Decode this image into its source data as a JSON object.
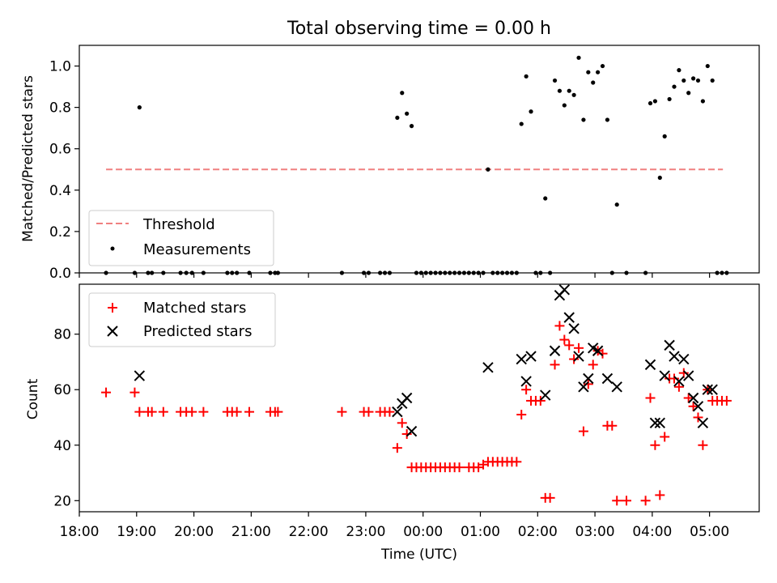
{
  "chart_data": [
    {
      "type": "scatter",
      "title": "Total observing time = 0.00 h",
      "ylabel": "Matched/Predicted stars",
      "xlabel": "",
      "xlim": [
        "18:00",
        "05:52"
      ],
      "ylim": [
        0,
        1.1
      ],
      "yticks": [
        "0.0",
        "0.2",
        "0.4",
        "0.6",
        "0.8",
        "1.0"
      ],
      "legend_position": "lower-left",
      "threshold": {
        "name": "Threshold",
        "value": 0.5,
        "x_range": [
          "18:28",
          "05:14"
        ],
        "color": "#f08080",
        "style": "dashed"
      },
      "series": [
        {
          "name": "Measurements",
          "color": "#000000",
          "marker": "dot",
          "points": [
            [
              "18:28",
              0
            ],
            [
              "18:58",
              0
            ],
            [
              "19:03",
              0.8
            ],
            [
              "19:12",
              0
            ],
            [
              "19:16",
              0
            ],
            [
              "19:28",
              0
            ],
            [
              "19:46",
              0
            ],
            [
              "19:52",
              0
            ],
            [
              "19:58",
              0
            ],
            [
              "20:10",
              0
            ],
            [
              "20:35",
              0
            ],
            [
              "20:40",
              0
            ],
            [
              "20:45",
              0
            ],
            [
              "20:58",
              0
            ],
            [
              "21:20",
              0
            ],
            [
              "21:25",
              0
            ],
            [
              "21:28",
              0
            ],
            [
              "22:35",
              0
            ],
            [
              "22:58",
              0
            ],
            [
              "23:03",
              0
            ],
            [
              "23:15",
              0
            ],
            [
              "23:20",
              0
            ],
            [
              "23:25",
              0
            ],
            [
              "23:33",
              0.75
            ],
            [
              "23:38",
              0.87
            ],
            [
              "23:43",
              0.77
            ],
            [
              "23:48",
              0.71
            ],
            [
              "23:53",
              0
            ],
            [
              "23:58",
              0
            ],
            [
              "00:03",
              0
            ],
            [
              "00:08",
              0
            ],
            [
              "00:13",
              0
            ],
            [
              "00:18",
              0
            ],
            [
              "00:23",
              0
            ],
            [
              "00:28",
              0
            ],
            [
              "00:33",
              0
            ],
            [
              "00:38",
              0
            ],
            [
              "00:43",
              0
            ],
            [
              "00:48",
              0
            ],
            [
              "00:53",
              0
            ],
            [
              "00:58",
              0
            ],
            [
              "01:03",
              0
            ],
            [
              "01:08",
              0.5
            ],
            [
              "01:13",
              0
            ],
            [
              "01:18",
              0
            ],
            [
              "01:23",
              0
            ],
            [
              "01:28",
              0
            ],
            [
              "01:33",
              0
            ],
            [
              "01:38",
              0
            ],
            [
              "01:43",
              0.72
            ],
            [
              "01:48",
              0.95
            ],
            [
              "01:53",
              0.78
            ],
            [
              "01:58",
              0
            ],
            [
              "02:03",
              0
            ],
            [
              "02:08",
              0.36
            ],
            [
              "02:13",
              0
            ],
            [
              "02:18",
              0.93
            ],
            [
              "02:23",
              0.88
            ],
            [
              "02:28",
              0.81
            ],
            [
              "02:33",
              0.88
            ],
            [
              "02:38",
              0.86
            ],
            [
              "02:43",
              1.04
            ],
            [
              "02:48",
              0.74
            ],
            [
              "02:53",
              0.97
            ],
            [
              "02:58",
              0.92
            ],
            [
              "03:03",
              0.97
            ],
            [
              "03:08",
              1.0
            ],
            [
              "03:13",
              0.74
            ],
            [
              "03:18",
              0
            ],
            [
              "03:23",
              0.33
            ],
            [
              "03:33",
              0
            ],
            [
              "03:53",
              0
            ],
            [
              "03:58",
              0.82
            ],
            [
              "04:03",
              0.83
            ],
            [
              "04:08",
              0.46
            ],
            [
              "04:13",
              0.66
            ],
            [
              "04:18",
              0.84
            ],
            [
              "04:23",
              0.9
            ],
            [
              "04:28",
              0.98
            ],
            [
              "04:33",
              0.93
            ],
            [
              "04:38",
              0.87
            ],
            [
              "04:43",
              0.94
            ],
            [
              "04:48",
              0.93
            ],
            [
              "04:53",
              0.83
            ],
            [
              "04:58",
              1.0
            ],
            [
              "05:03",
              0.93
            ],
            [
              "05:08",
              0
            ],
            [
              "05:13",
              0
            ],
            [
              "05:18",
              0
            ]
          ]
        }
      ]
    },
    {
      "type": "scatter",
      "title": "",
      "ylabel": "Count",
      "xlabel": "Time (UTC)",
      "xlim": [
        "18:00",
        "05:52"
      ],
      "ylim": [
        16,
        98
      ],
      "yticks": [
        "20",
        "40",
        "60",
        "80"
      ],
      "xticks": [
        "18:00",
        "19:00",
        "20:00",
        "21:00",
        "22:00",
        "23:00",
        "00:00",
        "01:00",
        "02:00",
        "03:00",
        "04:00",
        "05:00"
      ],
      "legend_position": "upper-left",
      "series": [
        {
          "name": "Matched stars",
          "color": "#ff0000",
          "marker": "plus",
          "points": [
            [
              "18:28",
              59
            ],
            [
              "18:58",
              59
            ],
            [
              "19:03",
              52
            ],
            [
              "19:12",
              52
            ],
            [
              "19:16",
              52
            ],
            [
              "19:28",
              52
            ],
            [
              "19:46",
              52
            ],
            [
              "19:52",
              52
            ],
            [
              "19:58",
              52
            ],
            [
              "20:10",
              52
            ],
            [
              "20:35",
              52
            ],
            [
              "20:40",
              52
            ],
            [
              "20:45",
              52
            ],
            [
              "20:58",
              52
            ],
            [
              "21:20",
              52
            ],
            [
              "21:25",
              52
            ],
            [
              "21:28",
              52
            ],
            [
              "22:35",
              52
            ],
            [
              "22:58",
              52
            ],
            [
              "23:03",
              52
            ],
            [
              "23:15",
              52
            ],
            [
              "23:20",
              52
            ],
            [
              "23:25",
              52
            ],
            [
              "23:33",
              39
            ],
            [
              "23:38",
              48
            ],
            [
              "23:43",
              44
            ],
            [
              "23:48",
              32
            ],
            [
              "23:53",
              32
            ],
            [
              "23:58",
              32
            ],
            [
              "00:03",
              32
            ],
            [
              "00:08",
              32
            ],
            [
              "00:13",
              32
            ],
            [
              "00:18",
              32
            ],
            [
              "00:23",
              32
            ],
            [
              "00:28",
              32
            ],
            [
              "00:33",
              32
            ],
            [
              "00:38",
              32
            ],
            [
              "00:48",
              32
            ],
            [
              "00:53",
              32
            ],
            [
              "00:58",
              32
            ],
            [
              "01:03",
              33
            ],
            [
              "01:08",
              34
            ],
            [
              "01:13",
              34
            ],
            [
              "01:18",
              34
            ],
            [
              "01:23",
              34
            ],
            [
              "01:28",
              34
            ],
            [
              "01:33",
              34
            ],
            [
              "01:38",
              34
            ],
            [
              "01:43",
              51
            ],
            [
              "01:48",
              60
            ],
            [
              "01:53",
              56
            ],
            [
              "01:58",
              56
            ],
            [
              "02:03",
              56
            ],
            [
              "02:08",
              21
            ],
            [
              "02:13",
              21
            ],
            [
              "02:18",
              69
            ],
            [
              "02:23",
              83
            ],
            [
              "02:28",
              78
            ],
            [
              "02:33",
              76
            ],
            [
              "02:38",
              71
            ],
            [
              "02:43",
              75
            ],
            [
              "02:48",
              45
            ],
            [
              "02:53",
              62
            ],
            [
              "02:58",
              69
            ],
            [
              "03:03",
              74
            ],
            [
              "03:08",
              73
            ],
            [
              "03:13",
              47
            ],
            [
              "03:18",
              47
            ],
            [
              "03:23",
              20
            ],
            [
              "03:33",
              20
            ],
            [
              "03:53",
              20
            ],
            [
              "03:58",
              57
            ],
            [
              "04:03",
              40
            ],
            [
              "04:08",
              22
            ],
            [
              "04:13",
              43
            ],
            [
              "04:18",
              64
            ],
            [
              "04:23",
              64
            ],
            [
              "04:28",
              61
            ],
            [
              "04:33",
              66
            ],
            [
              "04:38",
              57
            ],
            [
              "04:43",
              54
            ],
            [
              "04:48",
              50
            ],
            [
              "04:53",
              40
            ],
            [
              "04:58",
              60
            ],
            [
              "05:03",
              56
            ],
            [
              "05:08",
              56
            ],
            [
              "05:13",
              56
            ],
            [
              "05:18",
              56
            ]
          ]
        },
        {
          "name": "Predicted stars",
          "color": "#000000",
          "marker": "x",
          "points": [
            [
              "19:03",
              65
            ],
            [
              "23:33",
              52
            ],
            [
              "23:38",
              55
            ],
            [
              "23:43",
              57
            ],
            [
              "23:48",
              45
            ],
            [
              "01:08",
              68
            ],
            [
              "01:43",
              71
            ],
            [
              "01:48",
              63
            ],
            [
              "01:53",
              72
            ],
            [
              "02:08",
              58
            ],
            [
              "02:18",
              74
            ],
            [
              "02:23",
              94
            ],
            [
              "02:28",
              96
            ],
            [
              "02:33",
              86
            ],
            [
              "02:38",
              82
            ],
            [
              "02:43",
              72
            ],
            [
              "02:48",
              61
            ],
            [
              "02:53",
              64
            ],
            [
              "02:58",
              75
            ],
            [
              "03:03",
              74
            ],
            [
              "03:13",
              64
            ],
            [
              "03:23",
              61
            ],
            [
              "03:58",
              69
            ],
            [
              "04:03",
              48
            ],
            [
              "04:08",
              48
            ],
            [
              "04:13",
              65
            ],
            [
              "04:18",
              76
            ],
            [
              "04:23",
              72
            ],
            [
              "04:28",
              63
            ],
            [
              "04:33",
              71
            ],
            [
              "04:38",
              65
            ],
            [
              "04:43",
              57
            ],
            [
              "04:48",
              54
            ],
            [
              "04:53",
              48
            ],
            [
              "04:58",
              60
            ],
            [
              "05:03",
              60
            ]
          ]
        }
      ]
    }
  ]
}
